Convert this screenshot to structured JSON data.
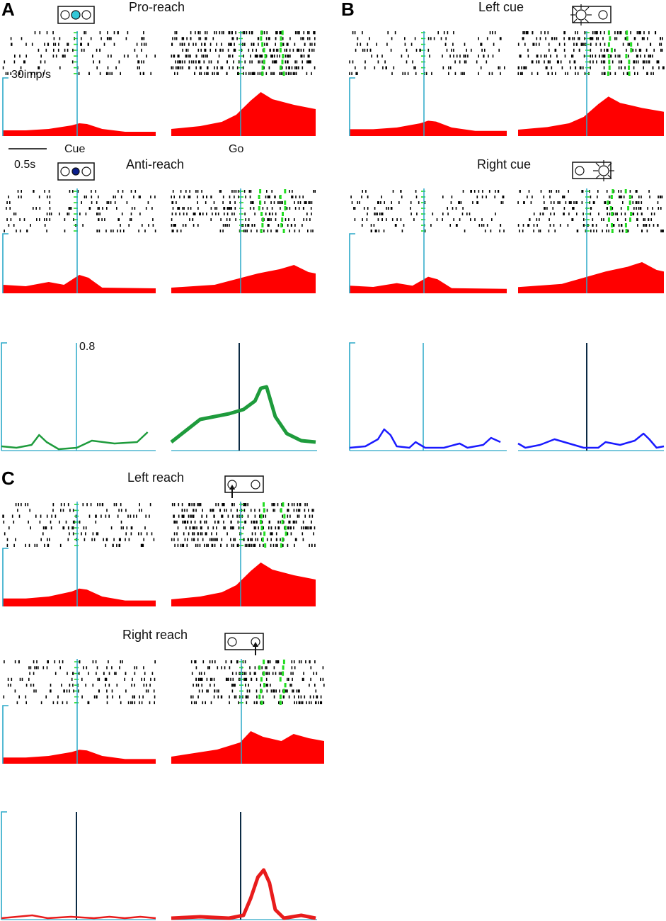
{
  "panel_labels": {
    "a": "A",
    "b": "B",
    "c": "C"
  },
  "titles": {
    "pro_reach": "Pro-reach",
    "anti_reach": "Anti-reach",
    "left_cue": "Left cue",
    "right_cue": "Right cue",
    "left_reach": "Left reach",
    "right_reach": "Right reach"
  },
  "labels": {
    "cue": "Cue",
    "go": "Go",
    "scale_rate": "30imp/s",
    "scale_time": "0.5s",
    "scale_value": "0.8"
  },
  "colors": {
    "psth_fill": "#ff0000",
    "raster_tick": "#000000",
    "marker": "#22dd22",
    "align_line": "#2aa8c8",
    "anti_pro_line": "#1e9b3c",
    "cue_line": "#1a1aff",
    "reach_line": "#e81c1c",
    "pro_cue_light": "#33c8d8",
    "anti_cue_light": "#0b1e8c"
  },
  "icons": {
    "pro_reach": "cue-light-icon",
    "anti_reach": "cue-light-icon",
    "left_cue": "left-light-icon",
    "right_cue": "right-light-icon",
    "left_reach": "left-reach-arrow-icon",
    "right_reach": "right-reach-arrow-icon"
  }
}
